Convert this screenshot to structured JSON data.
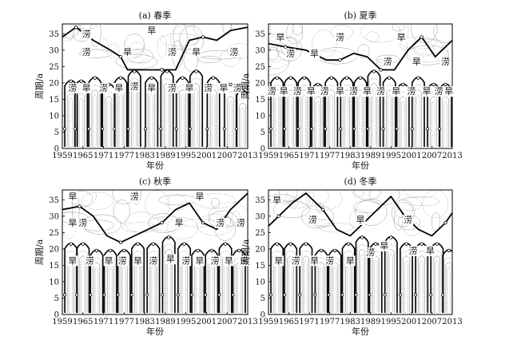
{
  "figure": {
    "type": "wavelet-contour",
    "panels": [
      {
        "title": "(a) 春季",
        "xlabel": "年份",
        "ylabel": "周期/a",
        "xticks": [
          "1959",
          "1965",
          "1971",
          "1977",
          "1983",
          "1989",
          "1995",
          "2001",
          "2007",
          "2013"
        ],
        "yticks": [
          "0",
          "5",
          "10",
          "15",
          "20",
          "25",
          "30",
          "35"
        ],
        "annotations": [
          {
            "text": "涝",
            "x": 1966,
            "y": 35
          },
          {
            "text": "旱",
            "x": 1985,
            "y": 36
          },
          {
            "text": "涝",
            "x": 1966,
            "y": 29.5
          },
          {
            "text": "旱",
            "x": 1978,
            "y": 29.5
          },
          {
            "text": "涝",
            "x": 1991,
            "y": 29.5
          },
          {
            "text": "旱",
            "x": 1998,
            "y": 29.5
          },
          {
            "text": "涝",
            "x": 2009,
            "y": 29.5
          },
          {
            "text": "涝",
            "x": 1962,
            "y": 18.5
          },
          {
            "text": "旱",
            "x": 1966,
            "y": 18.5
          },
          {
            "text": "涝",
            "x": 1971,
            "y": 18.5
          },
          {
            "text": "旱",
            "x": 1975.5,
            "y": 18.5
          },
          {
            "text": "涝",
            "x": 1980,
            "y": 19
          },
          {
            "text": "旱",
            "x": 1985,
            "y": 18.5
          },
          {
            "text": "涝",
            "x": 1991,
            "y": 18.5
          },
          {
            "text": "旱",
            "x": 1996,
            "y": 18.5
          },
          {
            "text": "涝",
            "x": 2001.5,
            "y": 18.5
          },
          {
            "text": "旱",
            "x": 2006,
            "y": 18.5
          },
          {
            "text": "涝",
            "x": 2010,
            "y": 18.5
          }
        ]
      },
      {
        "title": "(b) 夏季",
        "xlabel": "年份",
        "ylabel": "周期/a",
        "xticks": [
          "1959",
          "1965",
          "1971",
          "1977",
          "1983",
          "1989",
          "1995",
          "2001",
          "2007",
          "2013"
        ],
        "yticks": [
          "0",
          "5",
          "10",
          "15",
          "20",
          "25",
          "30",
          "35"
        ],
        "annotations": [
          {
            "text": "旱",
            "x": 1962.5,
            "y": 34
          },
          {
            "text": "涝",
            "x": 1980,
            "y": 34
          },
          {
            "text": "旱",
            "x": 1998,
            "y": 34
          },
          {
            "text": "涝",
            "x": 1965.5,
            "y": 29
          },
          {
            "text": "旱",
            "x": 1972.5,
            "y": 29
          },
          {
            "text": "涝",
            "x": 1994,
            "y": 26.5
          },
          {
            "text": "旱",
            "x": 2002.5,
            "y": 26.5
          },
          {
            "text": "涝",
            "x": 2011,
            "y": 26.5
          },
          {
            "text": "涝",
            "x": 1960,
            "y": 17.5
          },
          {
            "text": "旱",
            "x": 1963.5,
            "y": 17.5
          },
          {
            "text": "涝",
            "x": 1967.5,
            "y": 17.5
          },
          {
            "text": "旱",
            "x": 1971.5,
            "y": 17.5
          },
          {
            "text": "涝",
            "x": 1975.5,
            "y": 17.5
          },
          {
            "text": "旱",
            "x": 1980,
            "y": 17.5
          },
          {
            "text": "涝",
            "x": 1984,
            "y": 17.5
          },
          {
            "text": "旱",
            "x": 1988,
            "y": 17.5
          },
          {
            "text": "涝",
            "x": 1992,
            "y": 17.5
          },
          {
            "text": "旱",
            "x": 1996.5,
            "y": 17.5
          },
          {
            "text": "涝",
            "x": 2001,
            "y": 17.5
          },
          {
            "text": "旱",
            "x": 2005.5,
            "y": 17.5
          },
          {
            "text": "涝",
            "x": 2009,
            "y": 17.5
          },
          {
            "text": "旱",
            "x": 2012,
            "y": 17.5
          }
        ]
      },
      {
        "title": "(c) 秋季",
        "xlabel": "年份",
        "ylabel": "周期/a",
        "xticks": [
          "1959",
          "1965",
          "1971",
          "1977",
          "1983",
          "1989",
          "1995",
          "2001",
          "2007",
          "2013"
        ],
        "yticks": [
          "0",
          "5",
          "10",
          "15",
          "20",
          "25",
          "30",
          "35"
        ],
        "annotations": [
          {
            "text": "旱",
            "x": 1962,
            "y": 36
          },
          {
            "text": "涝",
            "x": 1980,
            "y": 36
          },
          {
            "text": "旱",
            "x": 1999,
            "y": 36
          },
          {
            "text": "旱",
            "x": 1962,
            "y": 28
          },
          {
            "text": "涝",
            "x": 1965,
            "y": 28
          },
          {
            "text": "旱",
            "x": 1993,
            "y": 28
          },
          {
            "text": "涝",
            "x": 2005,
            "y": 28
          },
          {
            "text": "涝",
            "x": 2011,
            "y": 28
          },
          {
            "text": "旱",
            "x": 1962,
            "y": 16.5
          },
          {
            "text": "涝",
            "x": 1967,
            "y": 16.5
          },
          {
            "text": "旱",
            "x": 1972.5,
            "y": 16.5
          },
          {
            "text": "涝",
            "x": 1976.5,
            "y": 16.5
          },
          {
            "text": "旱",
            "x": 1981,
            "y": 16.5
          },
          {
            "text": "涝",
            "x": 1985.5,
            "y": 16.5
          },
          {
            "text": "旱",
            "x": 1990.5,
            "y": 17
          },
          {
            "text": "涝",
            "x": 1995,
            "y": 16.5
          },
          {
            "text": "旱",
            "x": 1999,
            "y": 16.5
          },
          {
            "text": "涝",
            "x": 2003.5,
            "y": 16.5
          },
          {
            "text": "旱",
            "x": 2007.5,
            "y": 16.5
          },
          {
            "text": "涝",
            "x": 2012,
            "y": 16.5
          }
        ]
      },
      {
        "title": "(d) 冬季",
        "xlabel": "年份",
        "ylabel": "周期/a",
        "xticks": [
          "1959",
          "1965",
          "1971",
          "1977",
          "1983",
          "1989",
          "1995",
          "2001",
          "2007",
          "2013"
        ],
        "yticks": [
          "0",
          "5",
          "10",
          "15",
          "20",
          "25",
          "30",
          "35"
        ],
        "annotations": [
          {
            "text": "旱",
            "x": 1961.5,
            "y": 35
          },
          {
            "text": "涝",
            "x": 1972,
            "y": 29
          },
          {
            "text": "旱",
            "x": 1986,
            "y": 29
          },
          {
            "text": "涝",
            "x": 2000,
            "y": 29
          },
          {
            "text": "旱",
            "x": 1962,
            "y": 16.5
          },
          {
            "text": "涝",
            "x": 1967,
            "y": 16.5
          },
          {
            "text": "旱",
            "x": 1972.5,
            "y": 16.5
          },
          {
            "text": "涝",
            "x": 1977,
            "y": 16.5
          },
          {
            "text": "旱",
            "x": 1983,
            "y": 16.5
          },
          {
            "text": "涝",
            "x": 1989,
            "y": 19
          },
          {
            "text": "旱",
            "x": 1993,
            "y": 21
          },
          {
            "text": "涝",
            "x": 2001.5,
            "y": 19.5
          },
          {
            "text": "旱",
            "x": 2006.5,
            "y": 19.5
          }
        ]
      }
    ]
  },
  "chart_data": [
    {
      "type": "heatmap",
      "title": "(a) 春季",
      "xlabel": "年份",
      "ylabel": "周期/a",
      "xlim": [
        1959,
        2013
      ],
      "ylim": [
        0,
        38
      ],
      "xticks": [
        1959,
        1965,
        1971,
        1977,
        1983,
        1989,
        1995,
        2001,
        2007,
        2013
      ],
      "yticks": [
        0,
        5,
        10,
        15,
        20,
        25,
        30,
        35
      ],
      "zero_contour": {
        "long_period_boundary": {
          "x": [
            1959,
            1963,
            1968,
            1973,
            1976,
            1978,
            1983,
            1988,
            1992,
            1996,
            2000,
            2004,
            2008,
            2013
          ],
          "y": [
            34,
            37,
            33,
            30,
            28,
            24,
            24,
            24,
            24,
            33,
            34,
            33,
            36,
            37
          ]
        },
        "short_period_cells": [
          {
            "x": 1961.5,
            "top": 21
          },
          {
            "x": 1964.5,
            "top": 21
          },
          {
            "x": 1968.5,
            "top": 22
          },
          {
            "x": 1972.5,
            "top": 20
          },
          {
            "x": 1976,
            "top": 22
          },
          {
            "x": 1980,
            "top": 24
          },
          {
            "x": 1985,
            "top": 22
          },
          {
            "x": 1989.5,
            "top": 24
          },
          {
            "x": 1994,
            "top": 22
          },
          {
            "x": 1998,
            "top": 24
          },
          {
            "x": 2003,
            "top": 22
          },
          {
            "x": 2008,
            "top": 20
          },
          {
            "x": 2011.5,
            "top": 18
          }
        ]
      }
    },
    {
      "type": "heatmap",
      "title": "(b) 夏季",
      "xlabel": "年份",
      "ylabel": "周期/a",
      "xlim": [
        1959,
        2013
      ],
      "ylim": [
        0,
        38
      ],
      "xticks": [
        1959,
        1965,
        1971,
        1977,
        1983,
        1989,
        1995,
        2001,
        2007,
        2013
      ],
      "yticks": [
        0,
        5,
        10,
        15,
        20,
        25,
        30,
        35
      ],
      "zero_contour": {
        "long_period_boundary": {
          "x": [
            1959,
            1964,
            1970,
            1976,
            1980,
            1984,
            1988,
            1992,
            1996,
            2000,
            2004,
            2008,
            2013
          ],
          "y": [
            32,
            31,
            30,
            27,
            27,
            29,
            28,
            24,
            24,
            30,
            34,
            28,
            33
          ]
        },
        "short_period_cells": [
          {
            "x": 1961.5,
            "top": 22
          },
          {
            "x": 1965.5,
            "top": 22
          },
          {
            "x": 1969.5,
            "top": 22
          },
          {
            "x": 1973.5,
            "top": 20
          },
          {
            "x": 1977.5,
            "top": 22
          },
          {
            "x": 1982,
            "top": 22
          },
          {
            "x": 1986,
            "top": 22
          },
          {
            "x": 1990,
            "top": 24
          },
          {
            "x": 1994.5,
            "top": 22
          },
          {
            "x": 1998.5,
            "top": 20
          },
          {
            "x": 2003,
            "top": 22
          },
          {
            "x": 2007.5,
            "top": 20
          },
          {
            "x": 2011,
            "top": 20
          }
        ]
      }
    },
    {
      "type": "heatmap",
      "title": "(c) 秋季",
      "xlabel": "年份",
      "ylabel": "周期/a",
      "xlim": [
        1959,
        2013
      ],
      "ylim": [
        0,
        38
      ],
      "xticks": [
        1959,
        1965,
        1971,
        1977,
        1983,
        1989,
        1995,
        2001,
        2007,
        2013
      ],
      "yticks": [
        0,
        5,
        10,
        15,
        20,
        25,
        30,
        35
      ],
      "zero_contour": {
        "long_period_boundary": {
          "x": [
            1959,
            1964,
            1968,
            1972,
            1976,
            1980,
            1984,
            1988,
            1992,
            1996,
            2000,
            2004,
            2008,
            2013
          ],
          "y": [
            32,
            33,
            30,
            24,
            22,
            24,
            26,
            28,
            32,
            34,
            28,
            26,
            32,
            37
          ]
        },
        "short_period_cells": [
          {
            "x": 1961.5,
            "top": 22
          },
          {
            "x": 1965,
            "top": 22
          },
          {
            "x": 1969,
            "top": 20
          },
          {
            "x": 1973,
            "top": 20
          },
          {
            "x": 1977,
            "top": 20
          },
          {
            "x": 1981,
            "top": 22
          },
          {
            "x": 1985.5,
            "top": 22
          },
          {
            "x": 1990,
            "top": 24
          },
          {
            "x": 1994.5,
            "top": 22
          },
          {
            "x": 1998.5,
            "top": 20
          },
          {
            "x": 2002.5,
            "top": 20
          },
          {
            "x": 2006.5,
            "top": 22
          },
          {
            "x": 2010.5,
            "top": 20
          }
        ]
      }
    },
    {
      "type": "heatmap",
      "title": "(d) 冬季",
      "xlabel": "年份",
      "ylabel": "周期/a",
      "xlim": [
        1959,
        2013
      ],
      "ylim": [
        0,
        38
      ],
      "xticks": [
        1959,
        1965,
        1971,
        1977,
        1983,
        1989,
        1995,
        2001,
        2007,
        2013
      ],
      "yticks": [
        0,
        5,
        10,
        15,
        20,
        25,
        30,
        35
      ],
      "zero_contour": {
        "long_period_boundary": {
          "x": [
            1959,
            1962,
            1966,
            1970,
            1975,
            1979,
            1983,
            1987,
            1991,
            1995,
            1999,
            2003,
            2007,
            2011,
            2013
          ],
          "y": [
            27,
            30,
            34,
            37,
            32,
            26,
            24,
            28,
            32,
            36,
            30,
            26,
            24,
            28,
            31
          ]
        },
        "short_period_cells": [
          {
            "x": 1961.5,
            "top": 22
          },
          {
            "x": 1965.5,
            "top": 22
          },
          {
            "x": 1970,
            "top": 22
          },
          {
            "x": 1974.5,
            "top": 20
          },
          {
            "x": 1978.5,
            "top": 20
          },
          {
            "x": 1982.5,
            "top": 22
          },
          {
            "x": 1986.5,
            "top": 24
          },
          {
            "x": 1990.5,
            "top": 22
          },
          {
            "x": 1995,
            "top": 24
          },
          {
            "x": 1999.5,
            "top": 22
          },
          {
            "x": 2004,
            "top": 22
          },
          {
            "x": 2008.5,
            "top": 22
          },
          {
            "x": 2012,
            "top": 20
          }
        ]
      }
    }
  ]
}
